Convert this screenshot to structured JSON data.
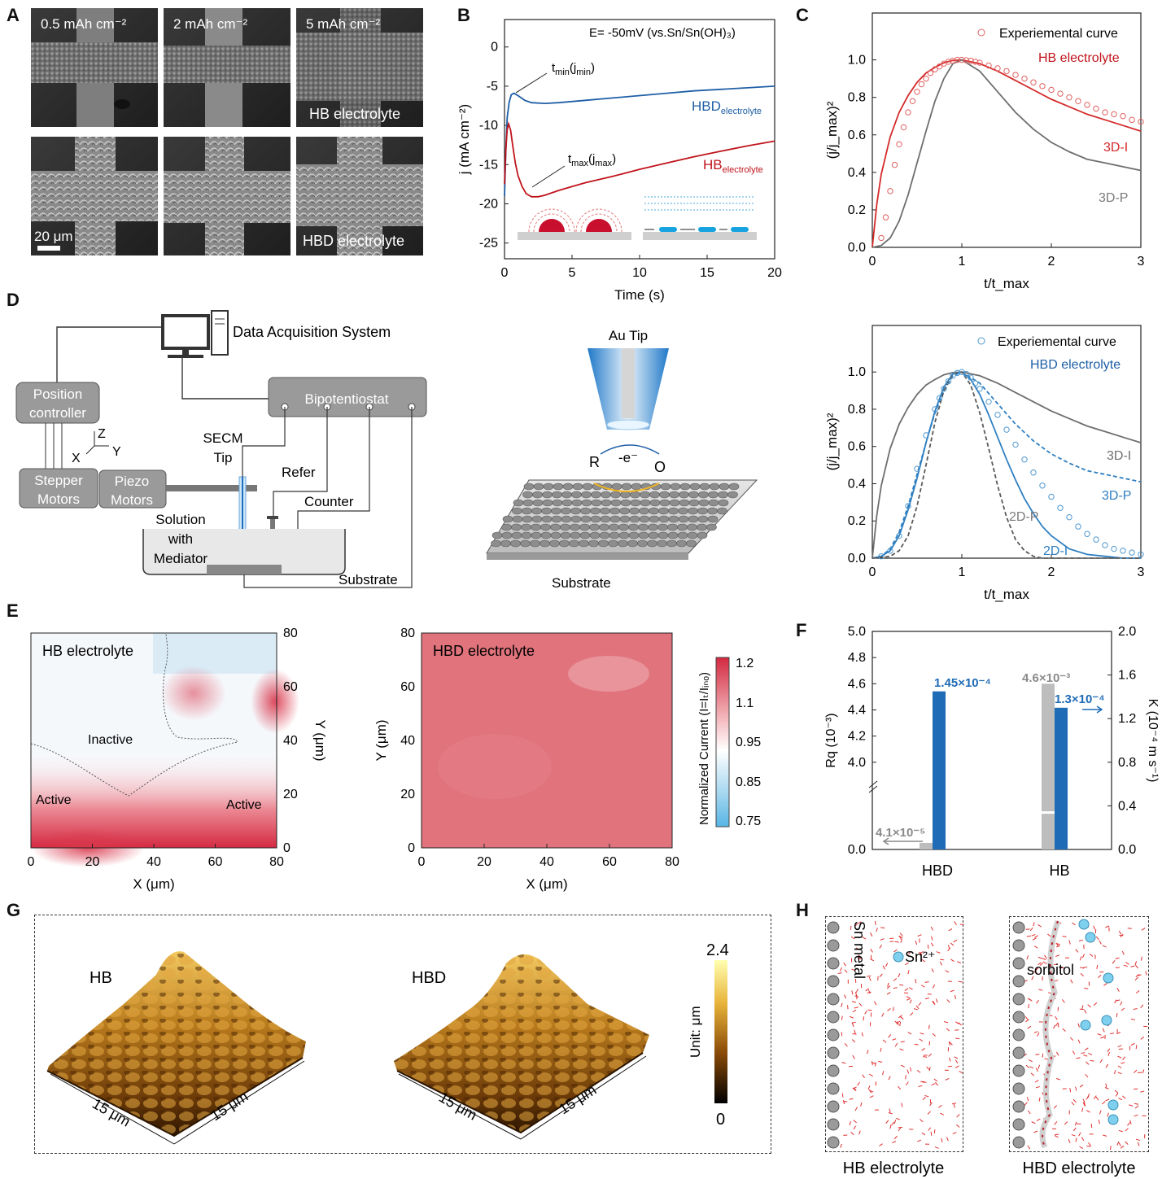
{
  "figure": {
    "panel_labels": [
      "A",
      "B",
      "C",
      "D",
      "E",
      "F",
      "G",
      "H"
    ]
  },
  "panel_a": {
    "top_labels": [
      "0.5 mAh cm⁻²",
      "2 mAh cm⁻²",
      "5 mAh cm⁻²"
    ],
    "hb_label": "HB electrolyte",
    "hbd_label": "HBD electrolyte",
    "scale_bar": "20 μm"
  },
  "panel_b": {
    "annotation": "E= -50mV (vs.Sn/Sn(OH)₃)",
    "tmin_label": "t",
    "tmin_sub": "min",
    "tmin_paren": "(j",
    "tmin_paren_sub": "min",
    "tmax_label": "t",
    "tmax_sub": "max",
    "tmax_paren": "(j",
    "tmax_paren_sub": "max",
    "hbd_curve": "HBD",
    "hbd_sub": "electrolyte",
    "hb_curve": "HB",
    "hb_sub": "electrolyte"
  },
  "panel_c": {
    "top_legend_exp": "Experiemental curve",
    "top_legend_name": "HB electrolyte",
    "bottom_legend_exp": "Experiemental curve",
    "bottom_legend_name": "HBD electrolyte",
    "labels": {
      "i3": "3D-I",
      "p3": "3D-P",
      "i2": "2D-I",
      "p2": "2D-P"
    }
  },
  "panel_d": {
    "daq": "Data Acquisition System",
    "position_controller": [
      "Position",
      "controller"
    ],
    "bipotentiostat": "Bipotentiostat",
    "stepper": [
      "Stepper",
      "Motors"
    ],
    "piezo": [
      "Piezo",
      "Motors"
    ],
    "secm": [
      "SECM",
      "Tip"
    ],
    "refer": "Refer",
    "counter": "Counter",
    "solution": [
      "Solution",
      "with",
      "Mediator"
    ],
    "substrate_left": "Substrate",
    "au_tip": "Au Tip",
    "r": "R",
    "e": "-e⁻",
    "o": "O",
    "substrate_right": "Substrate",
    "axes": {
      "z": "Z",
      "x": "X",
      "y": "Y"
    }
  },
  "panel_e": {
    "hb_title": "HB electrolyte",
    "inactive": "Inactive",
    "active_left": "Active",
    "active_right": "Active",
    "hbd_title": "HBD electrolyte",
    "colorbar_label": "Normalized Current (I=Iₜ/Iᵢₙₒ)",
    "colorbar_ticks": [
      "1.2",
      "1.1",
      "0.95",
      "0.85",
      "0.75"
    ]
  },
  "panel_f": {
    "hbd_val_grey": "4.1×10⁻⁵",
    "hbd_val_blue": "1.45×10⁻⁴",
    "hb_val_grey": "4.6×10⁻³",
    "hb_val_blue": "1.3×10⁻⁴",
    "categories": [
      "HBD",
      "HB"
    ]
  },
  "panel_g": {
    "hb": "HB",
    "hbd": "HBD",
    "dims": [
      "15 μm",
      "15 μm",
      "15 μm",
      "15 μm"
    ],
    "colorbar_max": "2.4",
    "colorbar_min": "0",
    "unit": "Unit: μm"
  },
  "panel_h": {
    "sn_metal": "Sn metal",
    "sn2": "Sn²⁺",
    "sorbitol": "sorbitol",
    "hb_caption": "HB electrolyte",
    "hbd_caption": "HBD electrolyte"
  },
  "chart_data": [
    {
      "id": "B",
      "type": "line",
      "title": "",
      "xlabel": "Time (s)",
      "ylabel": "j (mA cm⁻²)",
      "xlim": [
        0,
        20
      ],
      "ylim": [
        -27,
        3.5
      ],
      "xticks": [
        0,
        5,
        10,
        15,
        20
      ],
      "yticks": [
        0,
        -5,
        -10,
        -15,
        -20,
        -25
      ],
      "series": [
        {
          "name": "HBD electrolyte",
          "color": "#1f5fa6",
          "x": [
            0,
            0.1,
            0.2,
            0.35,
            0.5,
            0.7,
            1,
            1.5,
            2,
            3,
            4,
            6,
            8,
            10,
            12,
            14,
            16,
            18,
            20
          ],
          "y": [
            -19,
            -13,
            -9,
            -7,
            -6.1,
            -5.9,
            -6.2,
            -6.8,
            -7.1,
            -7.2,
            -7.1,
            -6.8,
            -6.5,
            -6.2,
            -5.9,
            -5.6,
            -5.4,
            -5.2,
            -5
          ]
        },
        {
          "name": "HB electrolyte",
          "color": "#c0141c",
          "x": [
            0,
            0.1,
            0.2,
            0.3,
            0.45,
            0.6,
            0.8,
            1.0,
            1.3,
            1.6,
            2.0,
            2.5,
            3,
            4,
            5,
            6,
            8,
            10,
            12,
            14,
            16,
            18,
            20
          ],
          "y": [
            -17.5,
            -13,
            -10.5,
            -9.8,
            -10.6,
            -12.5,
            -14.8,
            -16.4,
            -17.8,
            -18.7,
            -19.1,
            -19.1,
            -18.9,
            -18.3,
            -17.8,
            -17.3,
            -16.5,
            -15.6,
            -14.8,
            -14,
            -13.3,
            -12.6,
            -12
          ]
        }
      ]
    },
    {
      "id": "C-top",
      "type": "line",
      "xlabel": "t/t_max",
      "ylabel": "(j/j_max)²",
      "xlim": [
        0,
        3
      ],
      "ylim": [
        0,
        1.25
      ],
      "xticks": [
        0,
        1,
        2,
        3
      ],
      "yticks": [
        0.0,
        0.2,
        0.4,
        0.6,
        0.8,
        1.0
      ],
      "series": [
        {
          "name": "3D-I (HB electrolyte)",
          "color": "#d42a2a",
          "x": [
            0,
            0.05,
            0.1,
            0.2,
            0.3,
            0.4,
            0.5,
            0.6,
            0.7,
            0.8,
            0.9,
            1.0,
            1.2,
            1.4,
            1.6,
            1.8,
            2.0,
            2.2,
            2.4,
            2.6,
            2.8,
            3.0
          ],
          "y": [
            0,
            0.23,
            0.39,
            0.59,
            0.72,
            0.81,
            0.88,
            0.93,
            0.96,
            0.985,
            0.997,
            1.0,
            0.98,
            0.94,
            0.89,
            0.84,
            0.79,
            0.75,
            0.71,
            0.68,
            0.65,
            0.62
          ]
        },
        {
          "name": "3D-P",
          "color": "#6e6e6e",
          "x": [
            0,
            0.1,
            0.2,
            0.3,
            0.4,
            0.5,
            0.6,
            0.7,
            0.8,
            0.9,
            1.0,
            1.2,
            1.4,
            1.6,
            1.8,
            2.0,
            2.2,
            2.4,
            2.6,
            2.8,
            3.0
          ],
          "y": [
            0,
            0.01,
            0.05,
            0.14,
            0.28,
            0.45,
            0.62,
            0.78,
            0.9,
            0.98,
            1.0,
            0.94,
            0.83,
            0.72,
            0.63,
            0.56,
            0.51,
            0.47,
            0.45,
            0.43,
            0.41
          ]
        },
        {
          "name": "Experiemental curve",
          "color": "#e06060",
          "marker": "circle",
          "x": [
            0.1,
            0.15,
            0.2,
            0.25,
            0.3,
            0.35,
            0.4,
            0.45,
            0.5,
            0.55,
            0.6,
            0.65,
            0.7,
            0.75,
            0.8,
            0.85,
            0.9,
            0.95,
            1.0,
            1.05,
            1.1,
            1.15,
            1.2,
            1.3,
            1.4,
            1.5,
            1.6,
            1.7,
            1.8,
            1.9,
            2.0,
            2.1,
            2.2,
            2.3,
            2.4,
            2.5,
            2.6,
            2.7,
            2.8,
            2.9,
            3.0
          ],
          "y": [
            0.05,
            0.16,
            0.3,
            0.44,
            0.55,
            0.64,
            0.72,
            0.78,
            0.83,
            0.87,
            0.9,
            0.93,
            0.95,
            0.965,
            0.98,
            0.99,
            0.995,
            1.0,
            1.0,
            0.998,
            0.995,
            0.99,
            0.985,
            0.97,
            0.955,
            0.94,
            0.92,
            0.9,
            0.88,
            0.86,
            0.84,
            0.82,
            0.8,
            0.78,
            0.76,
            0.74,
            0.72,
            0.71,
            0.7,
            0.68,
            0.67
          ]
        }
      ]
    },
    {
      "id": "C-bottom",
      "type": "line",
      "xlabel": "t/t_max",
      "ylabel": "(j/j_max)²",
      "xlim": [
        0,
        3
      ],
      "ylim": [
        0,
        1.25
      ],
      "xticks": [
        0,
        1,
        2,
        3
      ],
      "yticks": [
        0.0,
        0.2,
        0.4,
        0.6,
        0.8,
        1.0
      ],
      "series": [
        {
          "name": "3D-I",
          "color": "#6e6e6e",
          "dash": false,
          "x": [
            0,
            0.05,
            0.1,
            0.2,
            0.3,
            0.4,
            0.5,
            0.6,
            0.7,
            0.8,
            0.9,
            1.0,
            1.2,
            1.4,
            1.6,
            1.8,
            2.0,
            2.2,
            2.4,
            2.6,
            2.8,
            3.0
          ],
          "y": [
            0,
            0.23,
            0.39,
            0.59,
            0.72,
            0.81,
            0.88,
            0.93,
            0.96,
            0.985,
            0.997,
            1.0,
            0.98,
            0.94,
            0.89,
            0.84,
            0.79,
            0.75,
            0.71,
            0.68,
            0.65,
            0.62
          ]
        },
        {
          "name": "3D-P",
          "color": "#2f7fc1",
          "dash": true,
          "x": [
            0,
            0.1,
            0.2,
            0.3,
            0.4,
            0.5,
            0.6,
            0.7,
            0.8,
            0.9,
            1.0,
            1.2,
            1.4,
            1.6,
            1.8,
            2.0,
            2.2,
            2.4,
            2.6,
            2.8,
            3.0
          ],
          "y": [
            0,
            0.01,
            0.05,
            0.14,
            0.28,
            0.45,
            0.62,
            0.78,
            0.9,
            0.98,
            1.0,
            0.94,
            0.83,
            0.72,
            0.63,
            0.56,
            0.51,
            0.47,
            0.45,
            0.43,
            0.41
          ]
        },
        {
          "name": "2D-I",
          "color": "#2f7fc1",
          "dash": false,
          "x": [
            0,
            0.1,
            0.2,
            0.3,
            0.4,
            0.5,
            0.6,
            0.7,
            0.8,
            0.9,
            1.0,
            1.1,
            1.2,
            1.3,
            1.4,
            1.5,
            1.6,
            1.7,
            1.8,
            1.9,
            2.0,
            2.2,
            2.4,
            2.6,
            2.8,
            3.0
          ],
          "y": [
            0,
            0.01,
            0.04,
            0.12,
            0.26,
            0.43,
            0.62,
            0.79,
            0.92,
            0.99,
            1.0,
            0.96,
            0.88,
            0.77,
            0.65,
            0.53,
            0.42,
            0.32,
            0.24,
            0.17,
            0.12,
            0.05,
            0.02,
            0.01,
            0,
            0
          ]
        },
        {
          "name": "2D-P",
          "color": "#5a5a5a",
          "dash": true,
          "x": [
            0,
            0.2,
            0.3,
            0.4,
            0.5,
            0.6,
            0.7,
            0.8,
            0.9,
            1.0,
            1.1,
            1.2,
            1.3,
            1.4,
            1.5,
            1.6,
            1.7,
            1.8,
            1.9,
            2.0,
            2.2,
            2.5,
            3.0
          ],
          "y": [
            0,
            0.01,
            0.04,
            0.12,
            0.28,
            0.5,
            0.73,
            0.9,
            0.99,
            1.0,
            0.93,
            0.78,
            0.59,
            0.39,
            0.22,
            0.1,
            0.04,
            0.01,
            0,
            0,
            0,
            0,
            0
          ]
        },
        {
          "name": "Experiemental curve",
          "color": "#4f98cf",
          "marker": "circle",
          "x": [
            0.1,
            0.2,
            0.3,
            0.4,
            0.5,
            0.6,
            0.7,
            0.75,
            0.8,
            0.85,
            0.9,
            0.95,
            1.0,
            1.05,
            1.1,
            1.15,
            1.2,
            1.3,
            1.4,
            1.5,
            1.6,
            1.7,
            1.8,
            1.9,
            2.0,
            2.1,
            2.2,
            2.3,
            2.4,
            2.5,
            2.6,
            2.7,
            2.8,
            2.9,
            3.0
          ],
          "y": [
            0.01,
            0.04,
            0.12,
            0.28,
            0.48,
            0.66,
            0.8,
            0.86,
            0.91,
            0.95,
            0.98,
            0.995,
            1.0,
            0.99,
            0.97,
            0.94,
            0.91,
            0.84,
            0.77,
            0.69,
            0.61,
            0.53,
            0.46,
            0.39,
            0.33,
            0.27,
            0.22,
            0.17,
            0.13,
            0.1,
            0.07,
            0.05,
            0.04,
            0.03,
            0.02
          ]
        }
      ]
    },
    {
      "id": "F",
      "type": "bar",
      "categories": [
        "HBD",
        "HB"
      ],
      "left_axis": {
        "label": "Rq (10⁻³)",
        "ticks": [
          "0.0",
          "4.0",
          "4.2",
          "4.4",
          "4.6",
          "4.8",
          "5.0"
        ]
      },
      "right_axis": {
        "label": "K (10⁻⁴ m s⁻¹)",
        "ticks": [
          "0.0",
          "0.4",
          "0.8",
          "1.2",
          "1.6",
          "2.0"
        ],
        "ylim": [
          0,
          2.0
        ]
      },
      "series": [
        {
          "name": "Rq",
          "color": "#bdbdbd",
          "values_1e_3": [
            0.041,
            4.6
          ]
        },
        {
          "name": "K",
          "color": "#1f6bb5",
          "values_1e_4": [
            1.45,
            1.3
          ]
        }
      ]
    },
    {
      "id": "E-left",
      "type": "heatmap",
      "xlabel": "X (μm)",
      "ylabel": "Y (μm)",
      "xticks": [
        0,
        20,
        40,
        60,
        80
      ],
      "yticks": [
        0,
        20,
        40,
        60,
        80
      ]
    },
    {
      "id": "E-right",
      "type": "heatmap",
      "xlabel": "X (μm)",
      "ylabel": "Y (μm)",
      "xticks": [
        0,
        20,
        40,
        60,
        80
      ],
      "yticks": [
        0,
        20,
        40,
        60,
        80
      ]
    }
  ]
}
